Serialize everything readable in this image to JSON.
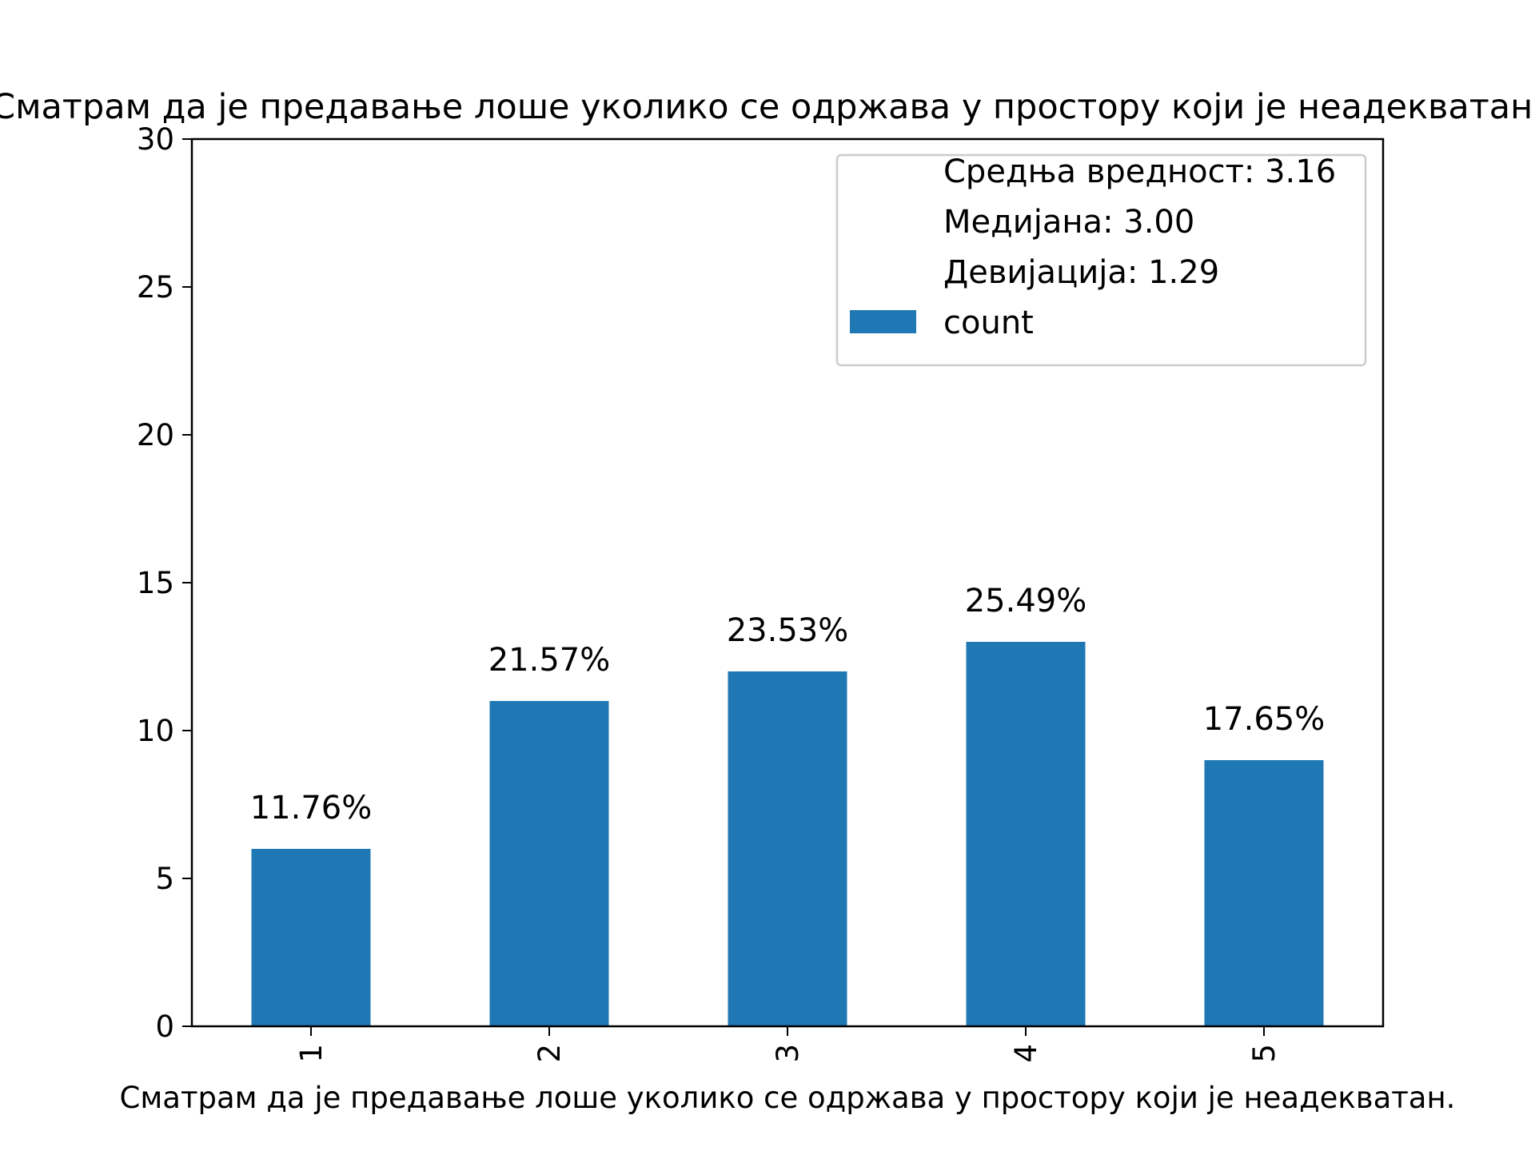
{
  "chart_data": {
    "type": "bar",
    "title": "Сматрам да је предавање лоше уколико се одржава у простору који је неадекватан.",
    "xlabel": "Сматрам да је предавање лоше уколико се одржава у простору који је неадекватан.",
    "ylabel": "",
    "categories": [
      "1",
      "2",
      "3",
      "4",
      "5"
    ],
    "series": [
      {
        "name": "count",
        "values": [
          6,
          11,
          12,
          13,
          9
        ],
        "color": "#1f77b4"
      }
    ],
    "bar_labels": [
      "11.76%",
      "21.57%",
      "23.53%",
      "25.49%",
      "17.65%"
    ],
    "ylim": [
      0,
      30
    ],
    "yticks": [
      "0",
      "5",
      "10",
      "15",
      "20",
      "25",
      "30"
    ],
    "grid": false,
    "legend": {
      "placement": "top-right",
      "entries": [
        "Средња вредност: 3.16",
        "Медијана: 3.00",
        "Девијација: 1.29",
        "count"
      ]
    },
    "xtick_rotation": 90
  }
}
